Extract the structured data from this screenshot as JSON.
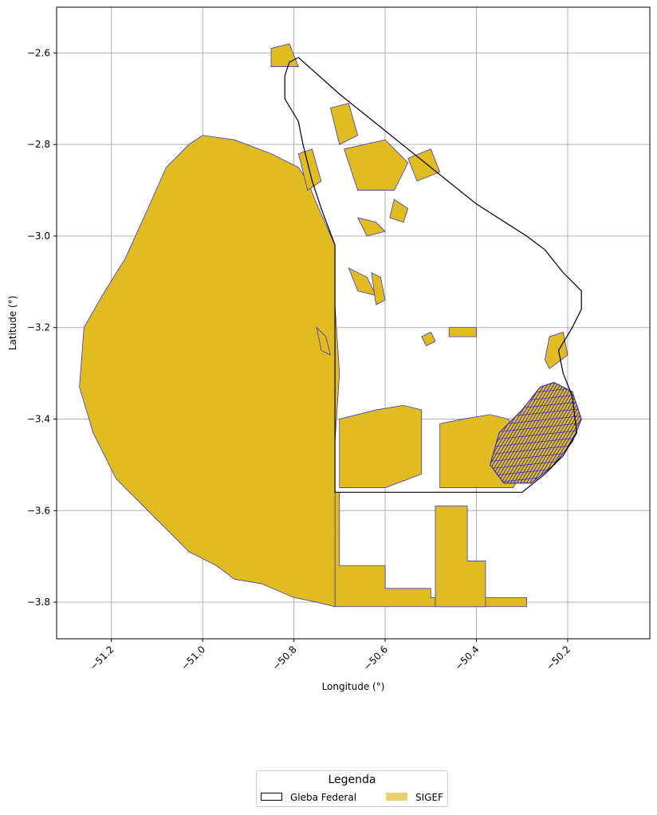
{
  "chart_data": {
    "type": "map",
    "xlabel": "Longitude (°)",
    "ylabel": "Latitude (°)",
    "xlim": [
      -51.32,
      -50.02
    ],
    "ylim": [
      -3.88,
      -2.5
    ],
    "x_ticks": [
      -51.2,
      -51.0,
      -50.8,
      -50.6,
      -50.4,
      -50.2
    ],
    "x_tick_labels": [
      "−51.2",
      "−51.0",
      "−50.8",
      "−50.6",
      "−50.4",
      "−50.2"
    ],
    "y_ticks": [
      -2.6,
      -2.8,
      -3.0,
      -3.2,
      -3.4,
      -3.6,
      -3.8
    ],
    "y_tick_labels": [
      "−2.6",
      "−2.8",
      "−3.0",
      "−3.2",
      "−3.4",
      "−3.6",
      "−3.8"
    ],
    "grid": true,
    "x_tick_rotation": 45,
    "legend": {
      "title": "Legenda",
      "placement": "bottom-center",
      "entries": [
        {
          "label": "Gleba Federal",
          "fill": "#ffffff",
          "edge": "#000000"
        },
        {
          "label": "SIGEF",
          "fill": "#e8d270",
          "edge": "none"
        }
      ]
    },
    "colors": {
      "sigef_fill": "#e0bc20",
      "sigef_edge": "#2a22c8",
      "dense_lots": "#1c14e0",
      "gleba_edge": "#000000",
      "grid": "#b0b0b0"
    },
    "layers": {
      "gleba_federal": [
        [
          [
            -50.79,
            -2.61
          ],
          [
            -50.81,
            -2.62
          ],
          [
            -50.82,
            -2.65
          ],
          [
            -50.82,
            -2.7
          ],
          [
            -50.79,
            -2.75
          ],
          [
            -50.78,
            -2.8
          ],
          [
            -50.76,
            -2.88
          ],
          [
            -50.74,
            -2.94
          ],
          [
            -50.71,
            -3.02
          ],
          [
            -50.71,
            -3.1
          ],
          [
            -50.71,
            -3.25
          ],
          [
            -50.71,
            -3.4
          ],
          [
            -50.71,
            -3.56
          ],
          [
            -50.62,
            -3.56
          ],
          [
            -50.5,
            -3.56
          ],
          [
            -50.4,
            -3.56
          ],
          [
            -50.3,
            -3.56
          ],
          [
            -50.25,
            -3.52
          ],
          [
            -50.21,
            -3.48
          ],
          [
            -50.18,
            -3.43
          ],
          [
            -50.19,
            -3.35
          ],
          [
            -50.21,
            -3.3
          ],
          [
            -50.22,
            -3.25
          ],
          [
            -50.19,
            -3.2
          ],
          [
            -50.17,
            -3.16
          ],
          [
            -50.17,
            -3.12
          ],
          [
            -50.21,
            -3.08
          ],
          [
            -50.25,
            -3.03
          ],
          [
            -50.29,
            -3.0
          ],
          [
            -50.4,
            -2.93
          ],
          [
            -50.5,
            -2.85
          ],
          [
            -50.6,
            -2.77
          ],
          [
            -50.7,
            -2.69
          ],
          [
            -50.79,
            -2.61
          ]
        ]
      ],
      "sigef_main": [
        [
          [
            -51.0,
            -2.78
          ],
          [
            -50.93,
            -2.79
          ],
          [
            -50.85,
            -2.82
          ],
          [
            -50.79,
            -2.85
          ],
          [
            -50.77,
            -2.88
          ],
          [
            -50.75,
            -2.93
          ],
          [
            -50.71,
            -3.02
          ],
          [
            -50.71,
            -3.15
          ],
          [
            -50.7,
            -3.3
          ],
          [
            -50.71,
            -3.45
          ],
          [
            -50.71,
            -3.56
          ],
          [
            -50.7,
            -3.65
          ],
          [
            -50.71,
            -3.81
          ],
          [
            -50.75,
            -3.8
          ],
          [
            -50.8,
            -3.79
          ],
          [
            -50.87,
            -3.76
          ],
          [
            -50.93,
            -3.75
          ],
          [
            -50.97,
            -3.72
          ],
          [
            -51.03,
            -3.69
          ],
          [
            -51.08,
            -3.64
          ],
          [
            -51.13,
            -3.59
          ],
          [
            -51.19,
            -3.53
          ],
          [
            -51.24,
            -3.43
          ],
          [
            -51.27,
            -3.33
          ],
          [
            -51.26,
            -3.2
          ],
          [
            -51.22,
            -3.13
          ],
          [
            -51.17,
            -3.05
          ],
          [
            -51.12,
            -2.94
          ],
          [
            -51.08,
            -2.85
          ],
          [
            -51.03,
            -2.8
          ],
          [
            -51.0,
            -2.78
          ]
        ]
      ],
      "sigef_parcels": [
        [
          [
            -50.7,
            -3.56
          ],
          [
            -50.7,
            -3.72
          ],
          [
            -50.6,
            -3.72
          ],
          [
            -50.6,
            -3.77
          ],
          [
            -50.5,
            -3.77
          ],
          [
            -50.5,
            -3.79
          ],
          [
            -50.29,
            -3.79
          ],
          [
            -50.29,
            -3.81
          ],
          [
            -50.5,
            -3.81
          ],
          [
            -50.7,
            -3.81
          ],
          [
            -50.71,
            -3.81
          ],
          [
            -50.71,
            -3.56
          ]
        ],
        [
          [
            -50.49,
            -3.59
          ],
          [
            -50.42,
            -3.59
          ],
          [
            -50.42,
            -3.71
          ],
          [
            -50.38,
            -3.71
          ],
          [
            -50.38,
            -3.81
          ],
          [
            -50.49,
            -3.81
          ]
        ],
        [
          [
            -50.48,
            -3.41
          ],
          [
            -50.43,
            -3.4
          ],
          [
            -50.37,
            -3.39
          ],
          [
            -50.33,
            -3.4
          ],
          [
            -50.3,
            -3.45
          ],
          [
            -50.3,
            -3.52
          ],
          [
            -50.32,
            -3.55
          ],
          [
            -50.48,
            -3.55
          ]
        ],
        [
          [
            -50.7,
            -3.4
          ],
          [
            -50.62,
            -3.38
          ],
          [
            -50.56,
            -3.37
          ],
          [
            -50.52,
            -3.38
          ],
          [
            -50.52,
            -3.52
          ],
          [
            -50.6,
            -3.55
          ],
          [
            -50.7,
            -3.55
          ]
        ],
        [
          [
            -50.73,
            -3.22
          ],
          [
            -50.75,
            -3.2
          ],
          [
            -50.74,
            -3.25
          ],
          [
            -50.72,
            -3.26
          ]
        ],
        [
          [
            -50.52,
            -3.22
          ],
          [
            -50.5,
            -3.21
          ],
          [
            -50.49,
            -3.23
          ],
          [
            -50.51,
            -3.24
          ]
        ],
        [
          [
            -50.46,
            -3.2
          ],
          [
            -50.4,
            -3.2
          ],
          [
            -50.4,
            -3.22
          ],
          [
            -50.46,
            -3.22
          ]
        ],
        [
          [
            -50.24,
            -3.22
          ],
          [
            -50.21,
            -3.21
          ],
          [
            -50.2,
            -3.26
          ],
          [
            -50.24,
            -3.29
          ],
          [
            -50.25,
            -3.27
          ]
        ],
        [
          [
            -50.79,
            -2.63
          ],
          [
            -50.85,
            -2.63
          ],
          [
            -50.85,
            -2.59
          ],
          [
            -50.81,
            -2.58
          ]
        ],
        [
          [
            -50.72,
            -2.72
          ],
          [
            -50.68,
            -2.71
          ],
          [
            -50.66,
            -2.78
          ],
          [
            -50.7,
            -2.8
          ]
        ],
        [
          [
            -50.79,
            -2.82
          ],
          [
            -50.76,
            -2.81
          ],
          [
            -50.74,
            -2.88
          ],
          [
            -50.77,
            -2.9
          ]
        ],
        [
          [
            -50.69,
            -2.81
          ],
          [
            -50.6,
            -2.79
          ],
          [
            -50.55,
            -2.84
          ],
          [
            -50.58,
            -2.9
          ],
          [
            -50.66,
            -2.9
          ]
        ],
        [
          [
            -50.55,
            -2.83
          ],
          [
            -50.5,
            -2.81
          ],
          [
            -50.48,
            -2.86
          ],
          [
            -50.53,
            -2.88
          ]
        ],
        [
          [
            -50.66,
            -2.96
          ],
          [
            -50.62,
            -2.97
          ],
          [
            -50.6,
            -2.99
          ],
          [
            -50.64,
            -3.0
          ]
        ],
        [
          [
            -50.68,
            -3.07
          ],
          [
            -50.64,
            -3.09
          ],
          [
            -50.62,
            -3.13
          ],
          [
            -50.66,
            -3.12
          ]
        ],
        [
          [
            -50.63,
            -3.08
          ],
          [
            -50.61,
            -3.09
          ],
          [
            -50.6,
            -3.14
          ],
          [
            -50.62,
            -3.15
          ]
        ],
        [
          [
            -50.58,
            -2.92
          ],
          [
            -50.55,
            -2.94
          ],
          [
            -50.56,
            -2.97
          ],
          [
            -50.59,
            -2.96
          ]
        ]
      ],
      "dense_lots_area": [
        [
          -50.35,
          -3.43
        ],
        [
          -50.3,
          -3.38
        ],
        [
          -50.26,
          -3.33
        ],
        [
          -50.23,
          -3.32
        ],
        [
          -50.19,
          -3.34
        ],
        [
          -50.17,
          -3.4
        ],
        [
          -50.19,
          -3.45
        ],
        [
          -50.23,
          -3.5
        ],
        [
          -50.28,
          -3.54
        ],
        [
          -50.34,
          -3.54
        ],
        [
          -50.37,
          -3.5
        ]
      ]
    }
  }
}
